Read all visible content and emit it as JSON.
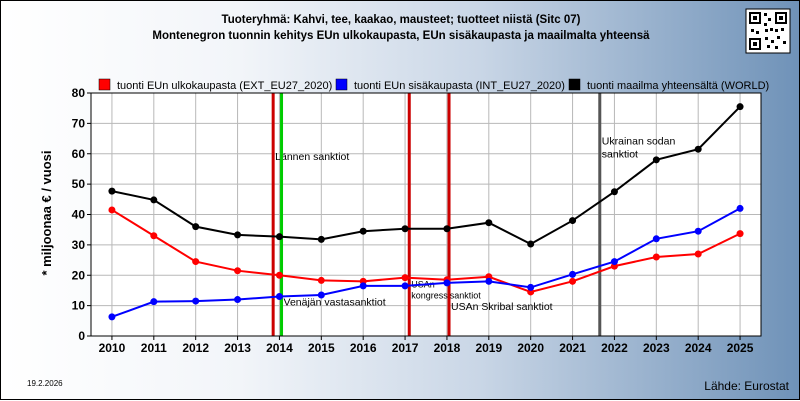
{
  "chart_data": {
    "type": "line",
    "title": "Tuoteryhmä: Kahvi, tee, kaakao, mausteet; tuotteet niistä (Sitc 07)",
    "subtitle": "Montenegron tuonnin kehitys EUn ulkokaupasta, EUn sisäkaupasta ja maailmalta yhteensä",
    "ylabel": "* miljoonaa € / vuosi",
    "xlabel": "",
    "ylim": [
      0,
      80
    ],
    "yticks": [
      0,
      10,
      20,
      30,
      40,
      50,
      60,
      70,
      80
    ],
    "x": [
      2010,
      2011,
      2012,
      2013,
      2014,
      2015,
      2016,
      2017,
      2018,
      2019,
      2020,
      2021,
      2022,
      2023,
      2024,
      2025
    ],
    "grid": true,
    "legend_position": "top",
    "series": [
      {
        "name": "tuonti EUn ulkokaupasta (EXT_EU27_2020)",
        "color": "#ff0000",
        "values": [
          41.5,
          33.0,
          24.5,
          21.5,
          20.0,
          18.3,
          18.0,
          19.2,
          18.5,
          19.5,
          14.5,
          18.0,
          23.0,
          26.0,
          27.0,
          33.7
        ]
      },
      {
        "name": "tuonti EUn sisäkaupasta (INT_EU27_2020)",
        "color": "#0000ff",
        "values": [
          6.3,
          11.3,
          11.5,
          12.0,
          13.0,
          13.5,
          16.5,
          16.5,
          17.5,
          18.0,
          16.0,
          20.3,
          24.5,
          32.0,
          34.5,
          42.0
        ]
      },
      {
        "name": "tuonti maailma yhteensältä (WORLD)",
        "color": "#000000",
        "values": [
          47.7,
          44.8,
          36.0,
          33.3,
          32.7,
          31.8,
          34.5,
          35.3,
          35.3,
          37.3,
          30.3,
          38.0,
          47.5,
          58.0,
          61.5,
          75.5
        ]
      }
    ],
    "events": [
      {
        "x": 2013.85,
        "color": "#cc0000",
        "label": "Lännen sanktiot",
        "label_y": 58
      },
      {
        "x": 2014.05,
        "color": "#00cc00",
        "label": "Venäjän vastasanktiot",
        "label_y": 10
      },
      {
        "x": 2017.1,
        "color": "#cc0000",
        "label": "USAn",
        "label2": "kongressisanktiot",
        "label_y": 16
      },
      {
        "x": 2018.05,
        "color": "#cc0000",
        "label": "USAn Skribal sanktiot",
        "label_y": 8.5
      },
      {
        "x": 2021.65,
        "color": "#555555",
        "label": "Ukrainan sodan",
        "label2": "sanktiot",
        "label_y": 63
      }
    ]
  },
  "footer": {
    "source": "Lähde: Eurostat",
    "date": "19.2.2026"
  }
}
